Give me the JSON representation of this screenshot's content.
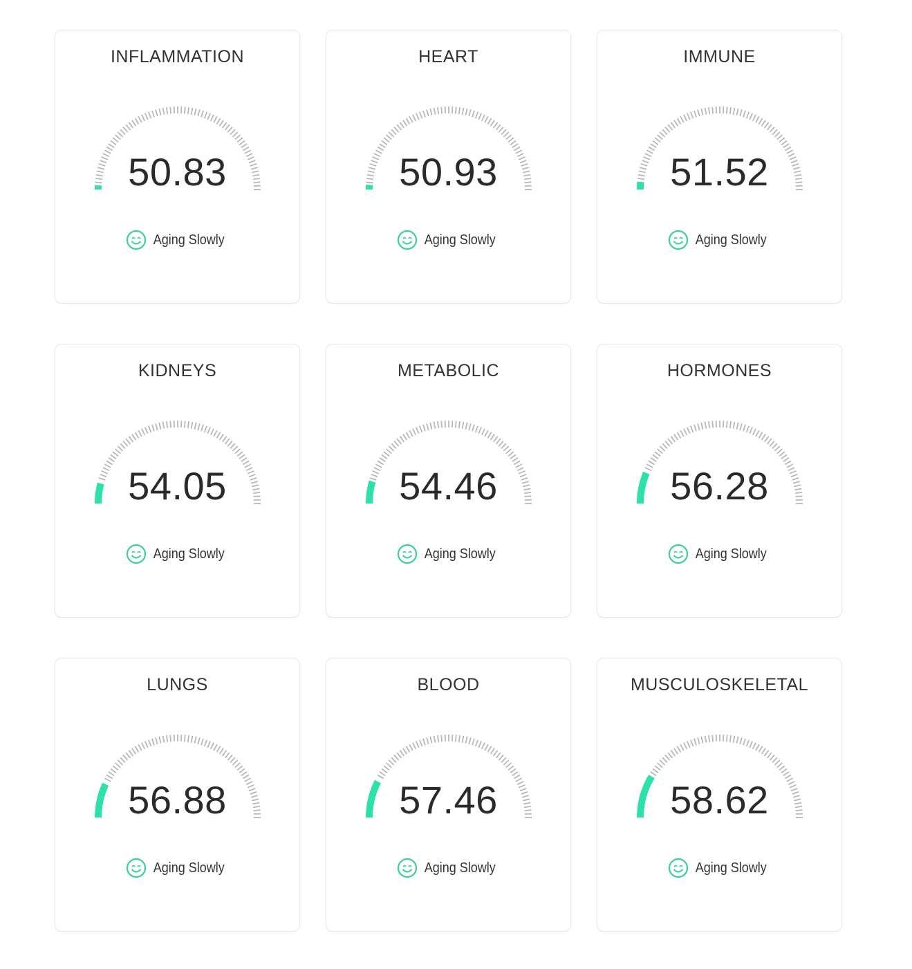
{
  "accent_color": "#2de0ac",
  "tick_color": "#b8b8b8",
  "status_color": "#3ecf9a",
  "gauge_min": 50,
  "gauge_max": 100,
  "cards": [
    {
      "title": "INFLAMMATION",
      "value": "50.83",
      "status": "Aging Slowly",
      "status_icon": "smiley-face-icon"
    },
    {
      "title": "HEART",
      "value": "50.93",
      "status": "Aging Slowly",
      "status_icon": "smiley-face-icon"
    },
    {
      "title": "IMMUNE",
      "value": "51.52",
      "status": "Aging Slowly",
      "status_icon": "smiley-face-icon"
    },
    {
      "title": "KIDNEYS",
      "value": "54.05",
      "status": "Aging Slowly",
      "status_icon": "smiley-face-icon"
    },
    {
      "title": "METABOLIC",
      "value": "54.46",
      "status": "Aging Slowly",
      "status_icon": "smiley-face-icon"
    },
    {
      "title": "HORMONES",
      "value": "56.28",
      "status": "Aging Slowly",
      "status_icon": "smiley-face-icon"
    },
    {
      "title": "LUNGS",
      "value": "56.88",
      "status": "Aging Slowly",
      "status_icon": "smiley-face-icon"
    },
    {
      "title": "BLOOD",
      "value": "57.46",
      "status": "Aging Slowly",
      "status_icon": "smiley-face-icon"
    },
    {
      "title": "MUSCULOSKELETAL",
      "value": "58.62",
      "status": "Aging Slowly",
      "status_icon": "smiley-face-icon"
    }
  ]
}
